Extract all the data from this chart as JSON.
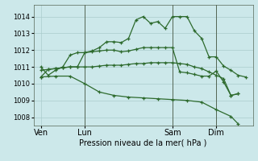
{
  "background_color": "#cce8ea",
  "grid_color": "#aacccc",
  "line_color": "#2d6a2d",
  "xlabel": "Pression niveau de la mer( hPa )",
  "ylim": [
    1007.5,
    1014.7
  ],
  "yticks": [
    1008,
    1009,
    1010,
    1011,
    1012,
    1013,
    1014
  ],
  "xtick_labels": [
    "Ven",
    "Lun",
    "Sam",
    "Dim"
  ],
  "xtick_positions": [
    0,
    24,
    72,
    96
  ],
  "xlim": [
    -4,
    116
  ],
  "vlines_x": [
    24,
    72,
    96
  ],
  "series1_x": [
    0,
    4,
    8,
    12,
    16,
    20,
    24,
    28,
    32,
    36,
    40,
    44,
    48,
    52,
    56,
    60,
    64,
    68,
    72,
    76,
    80,
    84,
    88,
    92,
    96,
    100,
    104,
    108,
    112
  ],
  "series1_y": [
    1011.0,
    1010.5,
    1010.8,
    1011.0,
    1011.7,
    1011.85,
    1011.85,
    1011.95,
    1012.15,
    1012.5,
    1012.5,
    1012.45,
    1012.7,
    1013.8,
    1014.0,
    1013.6,
    1013.7,
    1013.3,
    1014.0,
    1014.0,
    1014.0,
    1013.15,
    1012.7,
    1011.6,
    1011.6,
    1011.05,
    1010.8,
    1010.5,
    1010.4
  ],
  "series2_x": [
    0,
    4,
    8,
    12,
    16,
    20,
    24,
    28,
    32,
    36,
    40,
    44,
    48,
    52,
    56,
    60,
    64,
    68,
    72,
    76,
    80,
    84,
    88,
    92,
    96,
    100,
    104,
    108
  ],
  "series2_y": [
    1010.8,
    1010.85,
    1010.9,
    1010.95,
    1011.0,
    1011.0,
    1011.0,
    1011.0,
    1011.05,
    1011.1,
    1011.1,
    1011.1,
    1011.15,
    1011.2,
    1011.2,
    1011.25,
    1011.25,
    1011.25,
    1011.25,
    1011.2,
    1011.15,
    1011.0,
    1010.9,
    1010.7,
    1010.5,
    1010.3,
    1009.3,
    1009.4
  ],
  "series3_x": [
    0,
    4,
    8,
    12,
    16,
    20,
    24,
    28,
    32,
    36,
    40,
    44,
    48,
    52,
    56,
    60,
    64,
    68,
    72,
    76,
    80,
    84,
    88,
    92,
    96,
    100,
    104,
    108
  ],
  "series3_y": [
    1010.4,
    1010.85,
    1010.9,
    1010.95,
    1011.0,
    1011.0,
    1011.85,
    1011.9,
    1011.95,
    1012.0,
    1012.0,
    1011.9,
    1011.95,
    1012.05,
    1012.15,
    1012.15,
    1012.15,
    1012.15,
    1012.15,
    1010.7,
    1010.65,
    1010.55,
    1010.45,
    1010.45,
    1010.75,
    1010.1,
    1009.3,
    1009.4
  ],
  "series4_x": [
    0,
    8,
    16,
    24,
    32,
    40,
    48,
    56,
    64,
    72,
    80,
    88,
    96,
    104,
    108
  ],
  "series4_y": [
    1010.4,
    1010.45,
    1010.45,
    1010.0,
    1009.5,
    1009.3,
    1009.2,
    1009.15,
    1009.1,
    1009.05,
    1009.0,
    1008.9,
    1008.45,
    1008.05,
    1007.6
  ]
}
